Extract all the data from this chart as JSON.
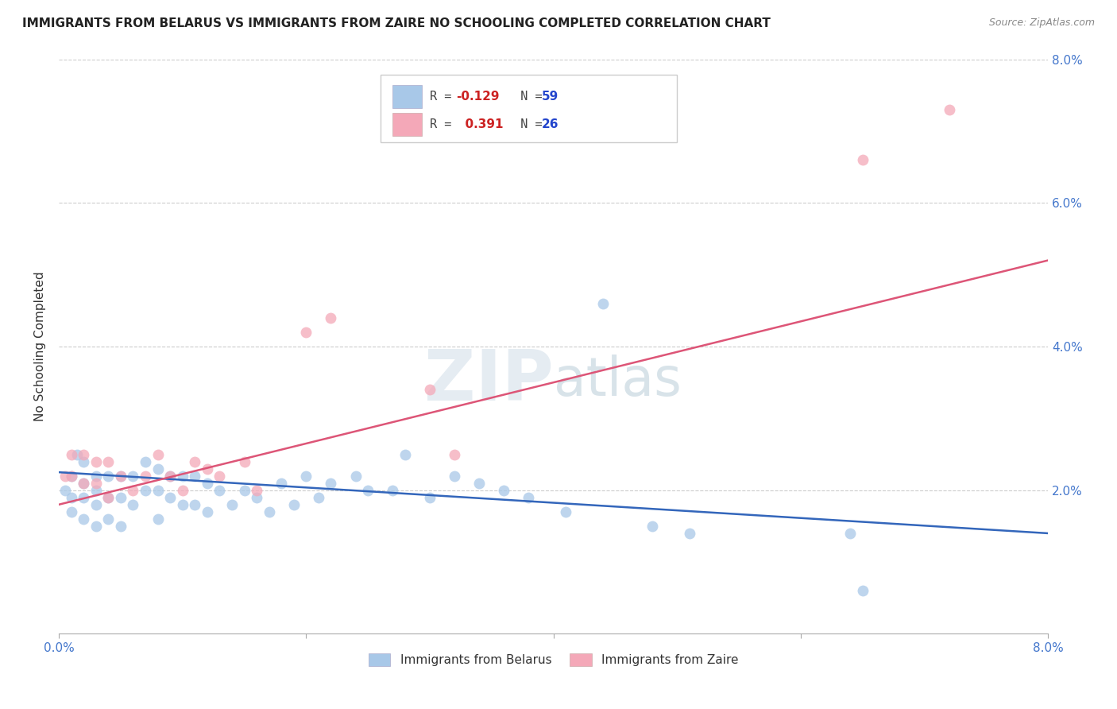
{
  "title": "IMMIGRANTS FROM BELARUS VS IMMIGRANTS FROM ZAIRE NO SCHOOLING COMPLETED CORRELATION CHART",
  "source": "Source: ZipAtlas.com",
  "ylabel": "No Schooling Completed",
  "xlim": [
    0.0,
    0.08
  ],
  "ylim": [
    0.0,
    0.08
  ],
  "legend_R_blue": "-0.129",
  "legend_N_blue": "59",
  "legend_R_pink": "0.391",
  "legend_N_pink": "26",
  "blue_color": "#a8c8e8",
  "pink_color": "#f4a8b8",
  "trendline_blue_color": "#3366bb",
  "trendline_pink_color": "#dd5577",
  "background_color": "#ffffff",
  "grid_color": "#cccccc",
  "blue_x": [
    0.0005,
    0.001,
    0.001,
    0.001,
    0.0015,
    0.002,
    0.002,
    0.002,
    0.002,
    0.003,
    0.003,
    0.003,
    0.003,
    0.004,
    0.004,
    0.004,
    0.005,
    0.005,
    0.005,
    0.006,
    0.006,
    0.007,
    0.007,
    0.008,
    0.008,
    0.008,
    0.009,
    0.009,
    0.01,
    0.01,
    0.011,
    0.011,
    0.012,
    0.012,
    0.013,
    0.014,
    0.015,
    0.016,
    0.017,
    0.018,
    0.019,
    0.02,
    0.021,
    0.022,
    0.024,
    0.025,
    0.027,
    0.028,
    0.03,
    0.032,
    0.034,
    0.036,
    0.038,
    0.041,
    0.044,
    0.048,
    0.051,
    0.064,
    0.065
  ],
  "blue_y": [
    0.02,
    0.019,
    0.022,
    0.017,
    0.025,
    0.021,
    0.019,
    0.016,
    0.024,
    0.022,
    0.02,
    0.018,
    0.015,
    0.022,
    0.019,
    0.016,
    0.022,
    0.019,
    0.015,
    0.022,
    0.018,
    0.024,
    0.02,
    0.023,
    0.02,
    0.016,
    0.022,
    0.019,
    0.022,
    0.018,
    0.022,
    0.018,
    0.021,
    0.017,
    0.02,
    0.018,
    0.02,
    0.019,
    0.017,
    0.021,
    0.018,
    0.022,
    0.019,
    0.021,
    0.022,
    0.02,
    0.02,
    0.025,
    0.019,
    0.022,
    0.021,
    0.02,
    0.019,
    0.017,
    0.046,
    0.015,
    0.014,
    0.014,
    0.006
  ],
  "pink_x": [
    0.0005,
    0.001,
    0.001,
    0.002,
    0.002,
    0.003,
    0.003,
    0.004,
    0.004,
    0.005,
    0.006,
    0.007,
    0.008,
    0.009,
    0.01,
    0.011,
    0.012,
    0.013,
    0.015,
    0.016,
    0.02,
    0.022,
    0.03,
    0.032,
    0.065,
    0.072
  ],
  "pink_y": [
    0.022,
    0.025,
    0.022,
    0.021,
    0.025,
    0.021,
    0.024,
    0.024,
    0.019,
    0.022,
    0.02,
    0.022,
    0.025,
    0.022,
    0.02,
    0.024,
    0.023,
    0.022,
    0.024,
    0.02,
    0.042,
    0.044,
    0.034,
    0.025,
    0.066,
    0.073
  ],
  "blue_trendline_x": [
    0.0,
    0.08
  ],
  "blue_trendline_y": [
    0.0225,
    0.014
  ],
  "pink_trendline_x": [
    0.0,
    0.08
  ],
  "pink_trendline_y": [
    0.018,
    0.052
  ],
  "point_size": 100
}
